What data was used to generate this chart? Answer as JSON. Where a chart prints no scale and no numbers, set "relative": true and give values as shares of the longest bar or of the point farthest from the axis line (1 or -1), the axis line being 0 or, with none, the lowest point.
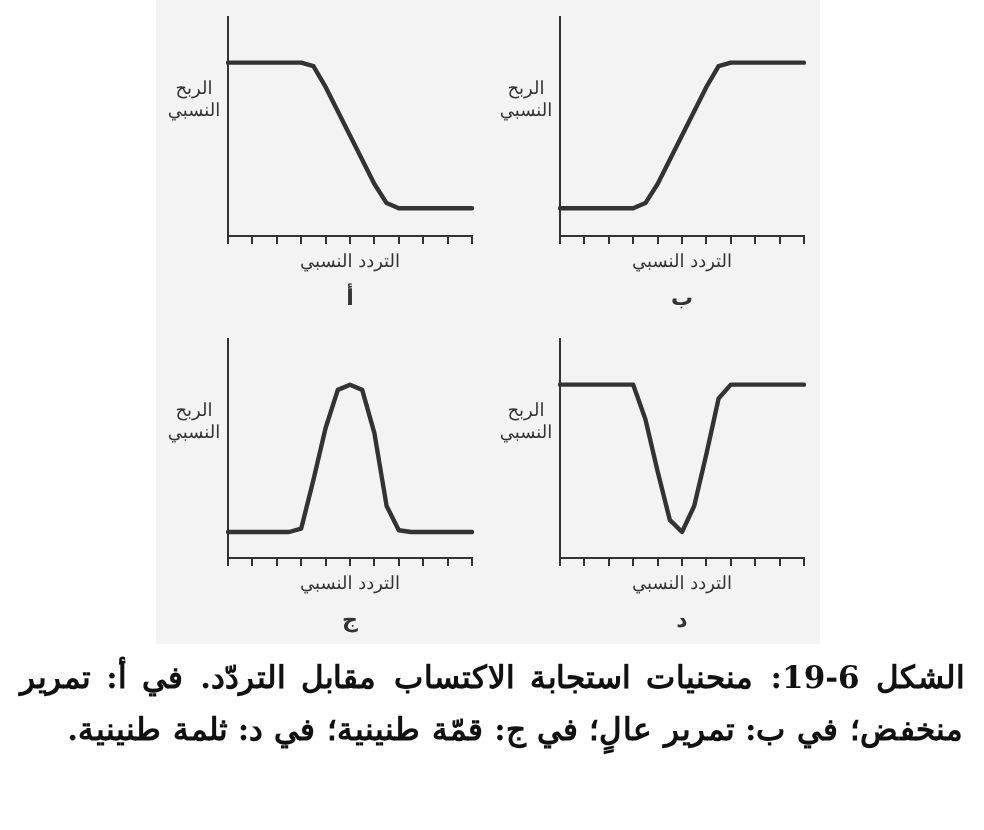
{
  "chart_data": [
    {
      "type": "line",
      "title": "أ",
      "xlabel": "التردد النسبي",
      "ylabel": "الربح النسبي",
      "relative": true,
      "tick_labels": false,
      "grid": false,
      "legend": false,
      "marker": "none",
      "line_style": "solid",
      "categories": [
        null,
        null,
        null,
        null,
        null,
        null,
        null,
        null,
        null,
        null,
        null,
        null,
        null,
        null,
        null,
        null,
        null,
        null,
        null,
        null,
        null
      ],
      "series": [
        {
          "color": "#333333",
          "values": [
            1,
            1,
            1,
            1,
            1,
            1,
            1,
            0.98,
            0.86,
            0.72,
            0.58,
            0.44,
            0.3,
            0.19,
            0.16,
            0.16,
            0.16,
            0.16,
            0.16,
            0.16,
            0.16
          ]
        }
      ]
    },
    {
      "type": "line",
      "title": "ب",
      "xlabel": "التردد النسبي",
      "ylabel": "الربح النسبي",
      "relative": true,
      "tick_labels": false,
      "grid": false,
      "legend": false,
      "marker": "none",
      "line_style": "solid",
      "categories": [
        null,
        null,
        null,
        null,
        null,
        null,
        null,
        null,
        null,
        null,
        null,
        null,
        null,
        null,
        null,
        null,
        null,
        null,
        null,
        null,
        null
      ],
      "series": [
        {
          "color": "#333333",
          "values": [
            0.16,
            0.16,
            0.16,
            0.16,
            0.16,
            0.16,
            0.16,
            0.19,
            0.3,
            0.44,
            0.58,
            0.72,
            0.86,
            0.98,
            1,
            1,
            1,
            1,
            1,
            1,
            1
          ]
        }
      ]
    },
    {
      "type": "line",
      "title": "ج",
      "xlabel": "التردد النسبي",
      "ylabel": "الربح النسبي",
      "relative": true,
      "tick_labels": false,
      "grid": false,
      "legend": false,
      "marker": "none",
      "line_style": "solid",
      "categories": [
        null,
        null,
        null,
        null,
        null,
        null,
        null,
        null,
        null,
        null,
        null,
        null,
        null,
        null,
        null,
        null,
        null,
        null,
        null,
        null,
        null
      ],
      "series": [
        {
          "color": "#333333",
          "values": [
            0.15,
            0.15,
            0.15,
            0.15,
            0.15,
            0.15,
            0.17,
            0.45,
            0.75,
            0.97,
            1,
            0.97,
            0.72,
            0.3,
            0.16,
            0.15,
            0.15,
            0.15,
            0.15,
            0.15,
            0.15
          ]
        }
      ]
    },
    {
      "type": "line",
      "title": "د",
      "xlabel": "التردد النسبي",
      "ylabel": "الربح النسبي",
      "relative": true,
      "tick_labels": false,
      "grid": false,
      "legend": false,
      "marker": "none",
      "line_style": "solid",
      "categories": [
        null,
        null,
        null,
        null,
        null,
        null,
        null,
        null,
        null,
        null,
        null,
        null,
        null,
        null,
        null,
        null,
        null,
        null,
        null,
        null,
        null
      ],
      "series": [
        {
          "color": "#333333",
          "values": [
            1,
            1,
            1,
            1,
            1,
            1,
            1,
            0.8,
            0.5,
            0.22,
            0.15,
            0.3,
            0.6,
            0.92,
            1,
            1,
            1,
            1,
            1,
            1,
            1
          ]
        }
      ],
      "annotations": [
        "الشكل 6-19: منحنيات استجابة الاكتساب مقابل التردّد. في أ: تمرير منخفض؛ في ب: تمرير عالٍ؛ في ج: قمّة طنينية؛ في د: ثلمة طنينية."
      ]
    }
  ]
}
